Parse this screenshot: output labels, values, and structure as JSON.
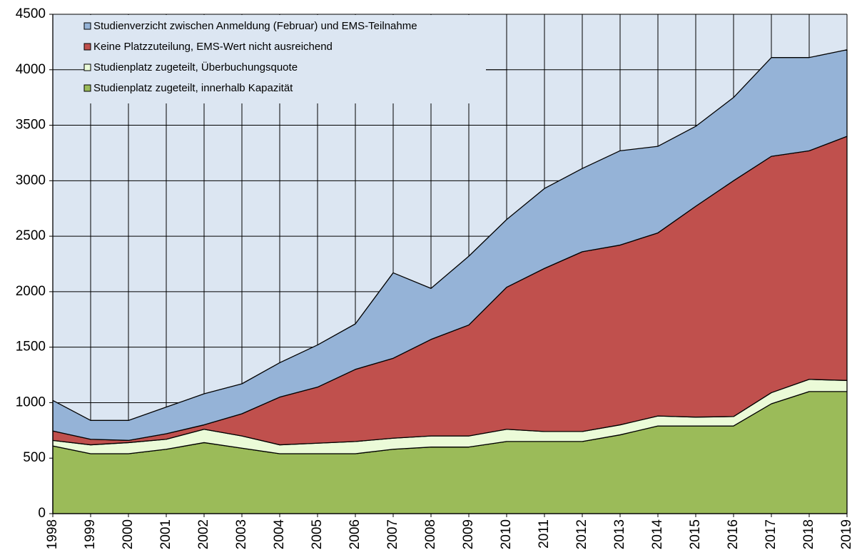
{
  "chart_data": {
    "type": "stacked_area",
    "categories": [
      "1998",
      "1999",
      "2000",
      "2001",
      "2002",
      "2003",
      "2004",
      "2005",
      "2006",
      "2007",
      "2008",
      "2009",
      "2010",
      "2011",
      "2012",
      "2013",
      "2014",
      "2015",
      "2016",
      "2017",
      "2018",
      "2019"
    ],
    "series": [
      {
        "name": "Studienplatz zugeteilt, innerhalb Kapazität",
        "color": "#9bbb59",
        "values": [
          610,
          540,
          540,
          580,
          640,
          590,
          540,
          540,
          540,
          580,
          600,
          600,
          650,
          650,
          650,
          710,
          790,
          790,
          790,
          990,
          1100,
          1100
        ]
      },
      {
        "name": "Studienplatz zugeteilt, Überbuchungsquote",
        "color": "#ebfbd8",
        "values": [
          50,
          80,
          100,
          90,
          120,
          110,
          80,
          95,
          110,
          100,
          100,
          100,
          110,
          90,
          90,
          90,
          90,
          80,
          85,
          100,
          110,
          100
        ]
      },
      {
        "name": "Keine Platzzuteilung, EMS-Wert nicht ausreichend",
        "color": "#c0504d",
        "values": [
          85,
          50,
          20,
          50,
          40,
          200,
          430,
          505,
          650,
          720,
          870,
          1000,
          1280,
          1470,
          1620,
          1620,
          1650,
          1900,
          2125,
          2130,
          2060,
          2200
        ]
      },
      {
        "name": "Studienverzicht zwischen Anmeldung (Februar) und EMS-Teilnahme",
        "color": "#95b3d7",
        "values": [
          275,
          170,
          180,
          240,
          280,
          270,
          310,
          380,
          410,
          770,
          460,
          620,
          610,
          720,
          750,
          850,
          780,
          720,
          750,
          890,
          840,
          780
        ]
      }
    ],
    "ylim": [
      0,
      4500
    ],
    "yticks": [
      0,
      500,
      1000,
      1500,
      2000,
      2500,
      3000,
      3500,
      4000,
      4500
    ],
    "grid": true,
    "legend": "top-left",
    "background": "#dce6f2"
  }
}
